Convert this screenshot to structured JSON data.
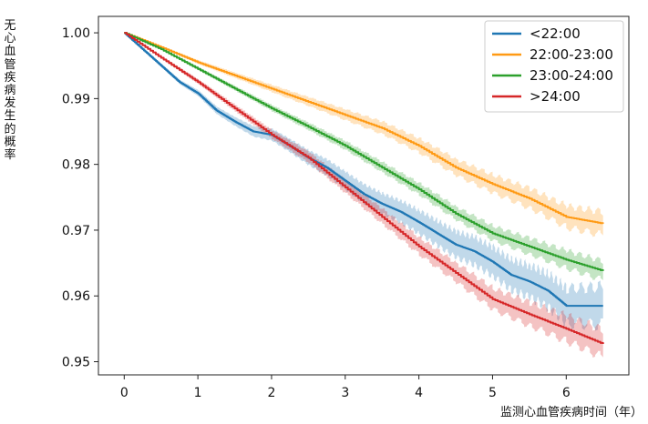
{
  "chart_data": {
    "type": "line",
    "title": "",
    "xlabel": "监测心血管疾病时间（年）",
    "ylabel": "无心血管疾病发生的概率",
    "xlim": [
      -0.35,
      6.85
    ],
    "ylim": [
      0.948,
      1.0025
    ],
    "xticks": [
      0,
      1,
      2,
      3,
      4,
      5,
      6
    ],
    "yticks": [
      0.95,
      0.96,
      0.97,
      0.98,
      0.99,
      1.0
    ],
    "ytick_labels": [
      "0.95",
      "0.96",
      "0.97",
      "0.98",
      "0.99",
      "1.00"
    ],
    "legend_position": "top-right",
    "grid": false,
    "series": [
      {
        "name": "<22:00",
        "color": "#1f77b4",
        "band": 0.0018,
        "points": [
          [
            0,
            1.0
          ],
          [
            0.25,
            0.9975
          ],
          [
            0.5,
            0.995
          ],
          [
            0.75,
            0.9925
          ],
          [
            1.0,
            0.9908
          ],
          [
            1.25,
            0.9882
          ],
          [
            1.5,
            0.9865
          ],
          [
            1.75,
            0.985
          ],
          [
            2.0,
            0.9845
          ],
          [
            2.25,
            0.9828
          ],
          [
            2.5,
            0.981
          ],
          [
            2.75,
            0.9795
          ],
          [
            3.0,
            0.9775
          ],
          [
            3.25,
            0.9755
          ],
          [
            3.5,
            0.974
          ],
          [
            3.75,
            0.9728
          ],
          [
            4.0,
            0.9712
          ],
          [
            4.25,
            0.9695
          ],
          [
            4.5,
            0.9678
          ],
          [
            4.75,
            0.9668
          ],
          [
            5.0,
            0.9652
          ],
          [
            5.25,
            0.9632
          ],
          [
            5.5,
            0.9622
          ],
          [
            5.75,
            0.9608
          ],
          [
            6.0,
            0.9585
          ],
          [
            6.5,
            0.9585
          ]
        ]
      },
      {
        "name": "22:00-23:00",
        "color": "#ff9a14",
        "band": 0.0011,
        "points": [
          [
            0,
            1.0
          ],
          [
            0.5,
            0.9978
          ],
          [
            1.0,
            0.9955
          ],
          [
            1.5,
            0.9935
          ],
          [
            2.0,
            0.9915
          ],
          [
            2.5,
            0.9895
          ],
          [
            3.0,
            0.9875
          ],
          [
            3.5,
            0.9855
          ],
          [
            4.0,
            0.9828
          ],
          [
            4.5,
            0.9795
          ],
          [
            5.0,
            0.977
          ],
          [
            5.5,
            0.9748
          ],
          [
            6.0,
            0.972
          ],
          [
            6.5,
            0.971
          ]
        ]
      },
      {
        "name": "23:00-24:00",
        "color": "#2ca02c",
        "band": 0.0009,
        "points": [
          [
            0,
            1.0
          ],
          [
            0.5,
            0.9975
          ],
          [
            1.0,
            0.9945
          ],
          [
            1.5,
            0.9915
          ],
          [
            2.0,
            0.9885
          ],
          [
            2.5,
            0.9857
          ],
          [
            3.0,
            0.9828
          ],
          [
            3.5,
            0.9795
          ],
          [
            4.0,
            0.9762
          ],
          [
            4.5,
            0.9725
          ],
          [
            5.0,
            0.9695
          ],
          [
            5.5,
            0.9675
          ],
          [
            6.0,
            0.9655
          ],
          [
            6.5,
            0.9638
          ]
        ]
      },
      {
        "name": ">24:00",
        "color": "#d62728",
        "band": 0.0013,
        "points": [
          [
            0,
            1.0
          ],
          [
            0.5,
            0.9962
          ],
          [
            1.0,
            0.9925
          ],
          [
            1.5,
            0.9885
          ],
          [
            2.0,
            0.9845
          ],
          [
            2.5,
            0.981
          ],
          [
            3.0,
            0.9765
          ],
          [
            3.5,
            0.972
          ],
          [
            4.0,
            0.9675
          ],
          [
            4.5,
            0.9635
          ],
          [
            5.0,
            0.9595
          ],
          [
            5.5,
            0.9572
          ],
          [
            6.0,
            0.955
          ],
          [
            6.5,
            0.9527
          ]
        ]
      }
    ]
  }
}
